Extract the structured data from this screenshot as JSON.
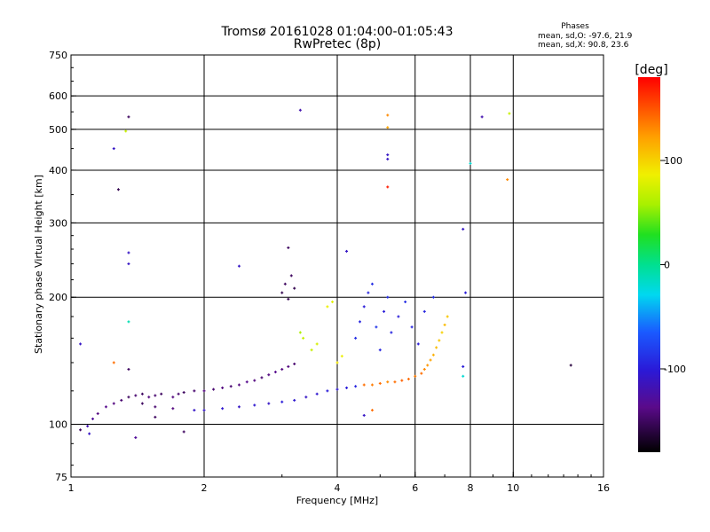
{
  "chart_data": {
    "type": "scatter",
    "title": "Tromsø 20161028 01:04:00-01:05:43",
    "subtitle": "RwPretec (8p)",
    "stats": {
      "heading": "Phases",
      "line1": "mean, sd,O: -97.6, 21.9",
      "line2": "mean, sd,X:  90.8, 23.6"
    },
    "xlabel": "Frequency [MHz]",
    "ylabel": "Stationary phase Virtual Height [km]",
    "x_scale": "log",
    "y_scale": "log",
    "xlim": [
      1,
      16
    ],
    "ylim": [
      75,
      750
    ],
    "x_ticks": [
      1,
      2,
      4,
      6,
      8,
      10,
      16
    ],
    "x_tick_labels": [
      "1",
      "2",
      "4",
      "6",
      "8",
      "10",
      "16"
    ],
    "x_grid": [
      1,
      2,
      4,
      6,
      8,
      10
    ],
    "y_ticks": [
      75,
      100,
      200,
      300,
      400,
      500,
      600,
      750
    ],
    "y_tick_labels": [
      "75",
      "100",
      "200",
      "300",
      "400",
      "500",
      "600",
      "750"
    ],
    "y_grid": [
      100,
      200,
      300,
      400,
      500,
      600
    ],
    "grid": true,
    "colorbar": {
      "label": "[deg]",
      "range": [
        -180,
        180
      ],
      "ticks": [
        100,
        0,
        -100
      ],
      "tick_labels": [
        "100",
        "0",
        "-100"
      ]
    },
    "points": [
      {
        "x": 1.05,
        "y": 97,
        "phase": -150
      },
      {
        "x": 1.09,
        "y": 99,
        "phase": -120
      },
      {
        "x": 1.12,
        "y": 103,
        "phase": -130
      },
      {
        "x": 1.15,
        "y": 106,
        "phase": -140
      },
      {
        "x": 1.2,
        "y": 110,
        "phase": -135
      },
      {
        "x": 1.25,
        "y": 112,
        "phase": -140
      },
      {
        "x": 1.3,
        "y": 114,
        "phase": -145
      },
      {
        "x": 1.35,
        "y": 116,
        "phase": -150
      },
      {
        "x": 1.4,
        "y": 117,
        "phase": -145
      },
      {
        "x": 1.45,
        "y": 118,
        "phase": -150
      },
      {
        "x": 1.5,
        "y": 116,
        "phase": -140
      },
      {
        "x": 1.55,
        "y": 117,
        "phase": -145
      },
      {
        "x": 1.6,
        "y": 118,
        "phase": -150
      },
      {
        "x": 1.7,
        "y": 116,
        "phase": -140
      },
      {
        "x": 1.75,
        "y": 118,
        "phase": -145
      },
      {
        "x": 1.8,
        "y": 119,
        "phase": -150
      },
      {
        "x": 1.9,
        "y": 120,
        "phase": -145
      },
      {
        "x": 2.0,
        "y": 120,
        "phase": -140
      },
      {
        "x": 2.1,
        "y": 121,
        "phase": -145
      },
      {
        "x": 2.2,
        "y": 122,
        "phase": -140
      },
      {
        "x": 2.3,
        "y": 123,
        "phase": -145
      },
      {
        "x": 2.4,
        "y": 124,
        "phase": -140
      },
      {
        "x": 2.5,
        "y": 126,
        "phase": -135
      },
      {
        "x": 2.6,
        "y": 127,
        "phase": -140
      },
      {
        "x": 2.7,
        "y": 129,
        "phase": -145
      },
      {
        "x": 2.8,
        "y": 131,
        "phase": -140
      },
      {
        "x": 2.9,
        "y": 133,
        "phase": -135
      },
      {
        "x": 3.0,
        "y": 135,
        "phase": -140
      },
      {
        "x": 3.1,
        "y": 137,
        "phase": -140
      },
      {
        "x": 3.2,
        "y": 139,
        "phase": -145
      },
      {
        "x": 1.45,
        "y": 112,
        "phase": -150
      },
      {
        "x": 1.55,
        "y": 110,
        "phase": -145
      },
      {
        "x": 1.7,
        "y": 109,
        "phase": -140
      },
      {
        "x": 1.9,
        "y": 108,
        "phase": -110
      },
      {
        "x": 2.0,
        "y": 108,
        "phase": -110
      },
      {
        "x": 2.2,
        "y": 109,
        "phase": -105
      },
      {
        "x": 2.4,
        "y": 110,
        "phase": -110
      },
      {
        "x": 2.6,
        "y": 111,
        "phase": -105
      },
      {
        "x": 2.8,
        "y": 112,
        "phase": -110
      },
      {
        "x": 3.0,
        "y": 113,
        "phase": -100
      },
      {
        "x": 3.2,
        "y": 114,
        "phase": -105
      },
      {
        "x": 3.4,
        "y": 116,
        "phase": -110
      },
      {
        "x": 3.6,
        "y": 118,
        "phase": -105
      },
      {
        "x": 3.8,
        "y": 120,
        "phase": -100
      },
      {
        "x": 4.0,
        "y": 121,
        "phase": -105
      },
      {
        "x": 4.2,
        "y": 122,
        "phase": -100
      },
      {
        "x": 4.4,
        "y": 123,
        "phase": -95
      },
      {
        "x": 4.6,
        "y": 124,
        "phase": 140
      },
      {
        "x": 4.8,
        "y": 124,
        "phase": 135
      },
      {
        "x": 5.0,
        "y": 125,
        "phase": 140
      },
      {
        "x": 5.2,
        "y": 126,
        "phase": 130
      },
      {
        "x": 5.4,
        "y": 126,
        "phase": 140
      },
      {
        "x": 5.6,
        "y": 127,
        "phase": 145
      },
      {
        "x": 5.8,
        "y": 128,
        "phase": 140
      },
      {
        "x": 6.0,
        "y": 130,
        "phase": 135
      },
      {
        "x": 6.2,
        "y": 132,
        "phase": 140
      },
      {
        "x": 6.3,
        "y": 135,
        "phase": 130
      },
      {
        "x": 6.4,
        "y": 138,
        "phase": 125
      },
      {
        "x": 6.5,
        "y": 142,
        "phase": 120
      },
      {
        "x": 6.6,
        "y": 146,
        "phase": 115
      },
      {
        "x": 6.7,
        "y": 152,
        "phase": 110
      },
      {
        "x": 6.8,
        "y": 158,
        "phase": 105
      },
      {
        "x": 6.9,
        "y": 165,
        "phase": 100
      },
      {
        "x": 7.0,
        "y": 172,
        "phase": 110
      },
      {
        "x": 7.1,
        "y": 180,
        "phase": 105
      },
      {
        "x": 4.4,
        "y": 160,
        "phase": -90
      },
      {
        "x": 4.5,
        "y": 175,
        "phase": -95
      },
      {
        "x": 4.6,
        "y": 190,
        "phase": -100
      },
      {
        "x": 4.7,
        "y": 205,
        "phase": -95
      },
      {
        "x": 4.8,
        "y": 215,
        "phase": -90
      },
      {
        "x": 4.9,
        "y": 170,
        "phase": -85
      },
      {
        "x": 5.0,
        "y": 150,
        "phase": -95
      },
      {
        "x": 5.1,
        "y": 185,
        "phase": -100
      },
      {
        "x": 5.2,
        "y": 200,
        "phase": -90
      },
      {
        "x": 5.3,
        "y": 165,
        "phase": -95
      },
      {
        "x": 5.5,
        "y": 180,
        "phase": -100
      },
      {
        "x": 5.7,
        "y": 195,
        "phase": -90
      },
      {
        "x": 5.9,
        "y": 170,
        "phase": -95
      },
      {
        "x": 6.1,
        "y": 155,
        "phase": -100
      },
      {
        "x": 6.3,
        "y": 185,
        "phase": -95
      },
      {
        "x": 6.6,
        "y": 200,
        "phase": -90
      },
      {
        "x": 3.0,
        "y": 205,
        "phase": -155
      },
      {
        "x": 3.05,
        "y": 215,
        "phase": -150
      },
      {
        "x": 3.1,
        "y": 198,
        "phase": -155
      },
      {
        "x": 3.15,
        "y": 225,
        "phase": -150
      },
      {
        "x": 3.2,
        "y": 210,
        "phase": -155
      },
      {
        "x": 3.3,
        "y": 165,
        "phase": 60
      },
      {
        "x": 3.35,
        "y": 160,
        "phase": 70
      },
      {
        "x": 3.5,
        "y": 150,
        "phase": 70
      },
      {
        "x": 3.6,
        "y": 155,
        "phase": 75
      },
      {
        "x": 3.8,
        "y": 190,
        "phase": 85
      },
      {
        "x": 3.9,
        "y": 195,
        "phase": 80
      },
      {
        "x": 4.0,
        "y": 140,
        "phase": 90
      },
      {
        "x": 4.1,
        "y": 145,
        "phase": 85
      },
      {
        "x": 1.05,
        "y": 155,
        "phase": -110
      },
      {
        "x": 1.35,
        "y": 535,
        "phase": -150
      },
      {
        "x": 1.33,
        "y": 495,
        "phase": 70
      },
      {
        "x": 1.25,
        "y": 450,
        "phase": -110
      },
      {
        "x": 1.28,
        "y": 360,
        "phase": -155
      },
      {
        "x": 1.35,
        "y": 255,
        "phase": -110
      },
      {
        "x": 1.35,
        "y": 240,
        "phase": -110
      },
      {
        "x": 1.35,
        "y": 175,
        "phase": -10
      },
      {
        "x": 1.25,
        "y": 140,
        "phase": 140
      },
      {
        "x": 1.35,
        "y": 135,
        "phase": -150
      },
      {
        "x": 3.3,
        "y": 555,
        "phase": -120
      },
      {
        "x": 5.2,
        "y": 540,
        "phase": 130
      },
      {
        "x": 5.2,
        "y": 505,
        "phase": 120
      },
      {
        "x": 5.2,
        "y": 435,
        "phase": -110
      },
      {
        "x": 5.2,
        "y": 425,
        "phase": -110
      },
      {
        "x": 5.2,
        "y": 365,
        "phase": 170
      },
      {
        "x": 8.5,
        "y": 535,
        "phase": -120
      },
      {
        "x": 9.8,
        "y": 545,
        "phase": 70
      },
      {
        "x": 8.0,
        "y": 415,
        "phase": -20
      },
      {
        "x": 9.7,
        "y": 380,
        "phase": 130
      },
      {
        "x": 7.7,
        "y": 290,
        "phase": -110
      },
      {
        "x": 7.8,
        "y": 205,
        "phase": -100
      },
      {
        "x": 7.7,
        "y": 137,
        "phase": -100
      },
      {
        "x": 7.7,
        "y": 130,
        "phase": -20
      },
      {
        "x": 13.5,
        "y": 138,
        "phase": -160
      },
      {
        "x": 4.6,
        "y": 105,
        "phase": -110
      },
      {
        "x": 4.8,
        "y": 108,
        "phase": 140
      },
      {
        "x": 3.1,
        "y": 262,
        "phase": -150
      },
      {
        "x": 2.4,
        "y": 237,
        "phase": -110
      },
      {
        "x": 4.2,
        "y": 257,
        "phase": -110
      },
      {
        "x": 1.8,
        "y": 96,
        "phase": -150
      },
      {
        "x": 1.4,
        "y": 93,
        "phase": -130
      },
      {
        "x": 1.55,
        "y": 104,
        "phase": -150
      },
      {
        "x": 1.1,
        "y": 95,
        "phase": -110
      }
    ]
  }
}
